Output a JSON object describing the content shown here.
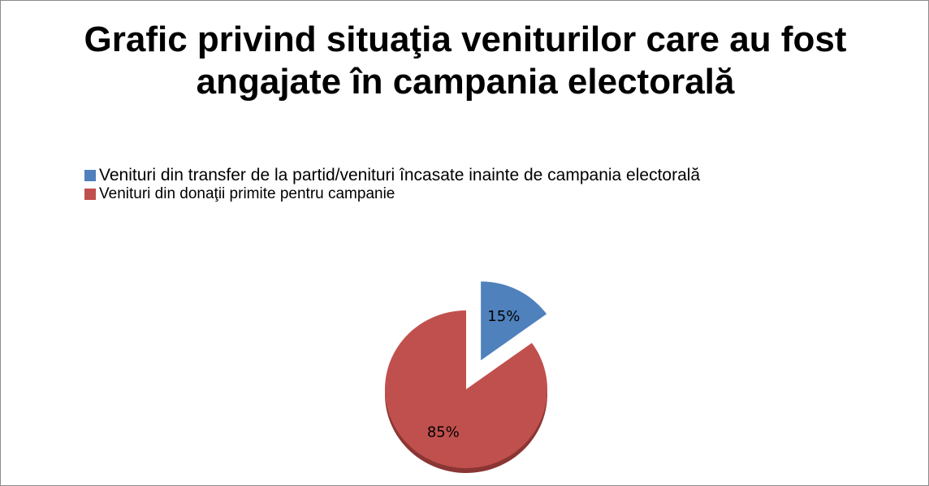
{
  "chart_data": {
    "type": "pie",
    "title": "Grafic privind situaţia veniturilor care au fost angajate în campania electorală",
    "categories": [
      "Venituri din transfer de la partid/venituri încasate inainte de campania electorală",
      "Venituri din donaţii primite pentru campanie"
    ],
    "values": [
      15,
      85
    ],
    "value_labels": [
      "15%",
      "85%"
    ],
    "colors": [
      "#4f81bd",
      "#c0504d"
    ],
    "exploded": [
      true,
      false
    ],
    "legend": "top"
  }
}
